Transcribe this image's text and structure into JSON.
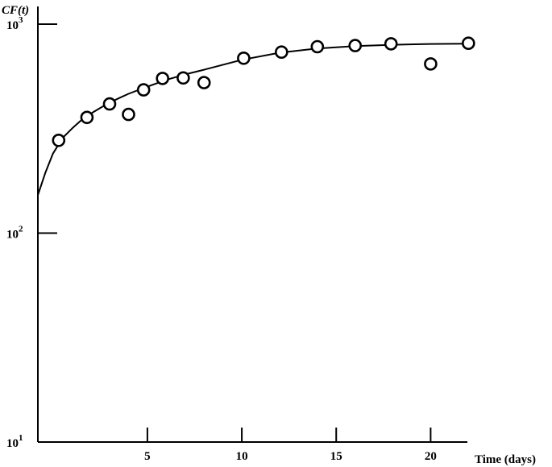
{
  "chart_data": {
    "type": "scatter",
    "title": "",
    "xlabel": "Time (days)",
    "ylabel": "CF(t)",
    "y_scale": "log",
    "xlim": [
      -0.8,
      22.8
    ],
    "ylim": [
      10,
      1000
    ],
    "x_ticks": [
      5,
      10,
      15,
      20
    ],
    "x_tick_labels": [
      "5",
      "10",
      "15",
      "20"
    ],
    "y_ticks": [
      {
        "value": 10,
        "base": "10",
        "exp": "1"
      },
      {
        "value": 100,
        "base": "10",
        "exp": "2"
      },
      {
        "value": 1000,
        "base": "10",
        "exp": "3"
      }
    ],
    "grid": false,
    "legend": "none",
    "series": [
      {
        "kind": "points",
        "marker": "open-circle",
        "x": [
          0.3,
          1.8,
          3.0,
          4.0,
          4.8,
          5.8,
          6.9,
          8.0,
          10.1,
          12.1,
          14.0,
          16.0,
          17.9,
          20.0,
          22.0
        ],
        "y": [
          278,
          358,
          415,
          370,
          485,
          550,
          553,
          525,
          687,
          735,
          780,
          790,
          805,
          645,
          810
        ]
      },
      {
        "kind": "fitted-curve",
        "x": [
          -0.8,
          -0.4,
          0.0,
          0.5,
          1.0,
          1.5,
          2.0,
          2.5,
          3.0,
          3.5,
          4.0,
          4.5,
          5.0,
          6.0,
          7.0,
          8.0,
          10.0,
          12.0,
          14.0,
          16.0,
          18.0,
          20.0,
          22.0
        ],
        "y": [
          152,
          195,
          240,
          285,
          316,
          347,
          373,
          397,
          421,
          443,
          464,
          483,
          502,
          541,
          575,
          605,
          675,
          730,
          765,
          785,
          797,
          804,
          806
        ]
      }
    ]
  }
}
